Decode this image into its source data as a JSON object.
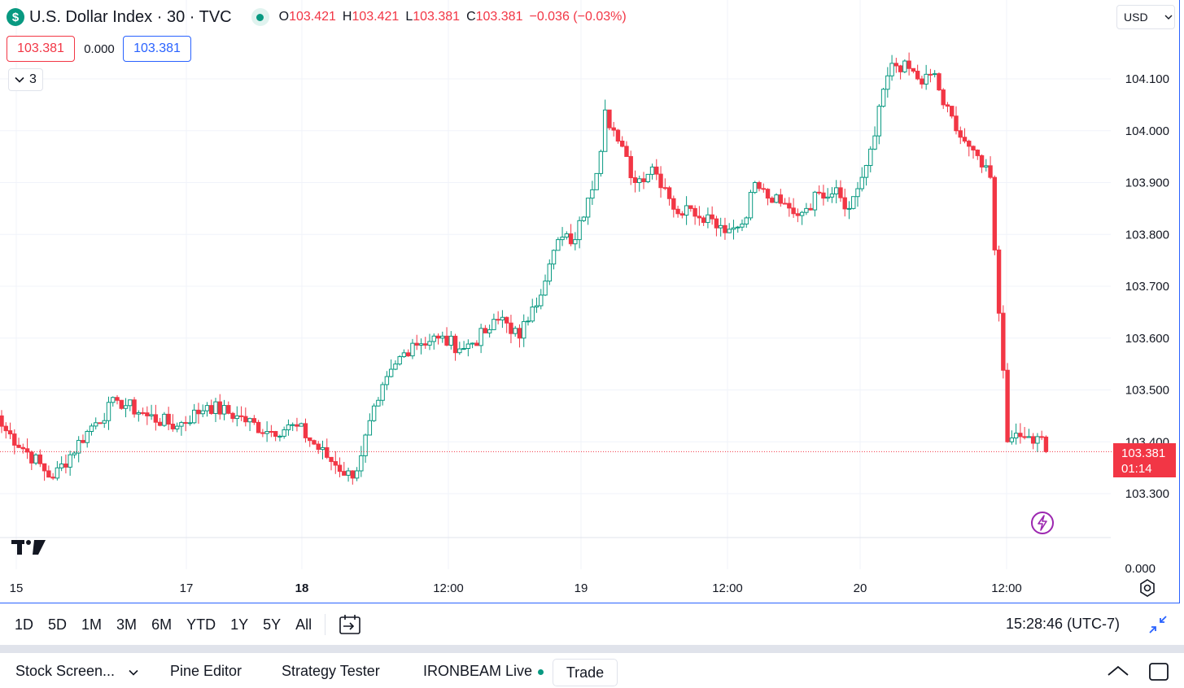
{
  "header": {
    "symbol_icon": "$",
    "title": "U.S. Dollar Index · 30 · TVC",
    "ohlc": {
      "o_label": "O",
      "o_value": "103.421",
      "h_label": "H",
      "h_value": "103.421",
      "l_label": "L",
      "l_value": "103.381",
      "c_label": "C",
      "c_value": "103.381",
      "change": "−0.036 (−0.03%)"
    }
  },
  "currency": {
    "label": "USD"
  },
  "quote": {
    "bid": "103.381",
    "spread": "0.000",
    "ask": "103.381"
  },
  "indicators": {
    "count": "3"
  },
  "last_price": {
    "price": "103.381",
    "countdown": "01:14"
  },
  "range_buttons": [
    "1D",
    "5D",
    "1M",
    "3M",
    "6M",
    "YTD",
    "1Y",
    "5Y",
    "All"
  ],
  "clock": "15:28:46 (UTC-7)",
  "bottom_tabs": {
    "screener": "Stock Screen...",
    "pine": "Pine Editor",
    "strategy": "Strategy Tester",
    "broker": "IRONBEAM Live",
    "trade": "Trade"
  },
  "colors": {
    "up": "#089981",
    "down": "#f23645",
    "accent": "#2962ff",
    "grid": "#f0f3fa"
  },
  "chart_data": {
    "type": "candlestick",
    "symbol": "U.S. Dollar Index",
    "interval": "30",
    "y_ticks": [
      "104.100",
      "104.000",
      "103.900",
      "103.800",
      "103.700",
      "103.600",
      "103.500",
      "103.400",
      "103.300"
    ],
    "y_zero_label": "0.000",
    "ylim": [
      103.22,
      104.17
    ],
    "x_ticks": [
      "15",
      "17",
      "18",
      "12:00",
      "19",
      "12:00",
      "20",
      "12:00"
    ],
    "x_ticks_bold": [
      "18"
    ],
    "last_value": 103.381,
    "anchors": [
      [
        0,
        103.43
      ],
      [
        12,
        103.33
      ],
      [
        20,
        103.42
      ],
      [
        27,
        103.48
      ],
      [
        34,
        103.45
      ],
      [
        41,
        103.43
      ],
      [
        48,
        103.47
      ],
      [
        55,
        103.45
      ],
      [
        62,
        103.42
      ],
      [
        69,
        103.43
      ],
      [
        76,
        103.37
      ],
      [
        82,
        103.33
      ],
      [
        88,
        103.48
      ],
      [
        92,
        103.55
      ],
      [
        96,
        103.59
      ],
      [
        102,
        103.6
      ],
      [
        108,
        103.58
      ],
      [
        113,
        103.61
      ],
      [
        117,
        103.64
      ],
      [
        121,
        103.6
      ],
      [
        124,
        103.66
      ],
      [
        127,
        103.71
      ],
      [
        130,
        103.79
      ],
      [
        134,
        103.79
      ],
      [
        137,
        103.87
      ],
      [
        140,
        103.96
      ],
      [
        141,
        104.04
      ],
      [
        144,
        103.98
      ],
      [
        148,
        103.9
      ],
      [
        152,
        103.93
      ],
      [
        155,
        103.89
      ],
      [
        158,
        103.84
      ],
      [
        161,
        103.85
      ],
      [
        166,
        103.83
      ],
      [
        170,
        103.81
      ],
      [
        173,
        103.82
      ],
      [
        176,
        103.9
      ],
      [
        179,
        103.87
      ],
      [
        182,
        103.86
      ],
      [
        185,
        103.84
      ],
      [
        188,
        103.85
      ],
      [
        191,
        103.88
      ],
      [
        195,
        103.89
      ],
      [
        198,
        103.85
      ],
      [
        201,
        103.91
      ],
      [
        204,
        103.99
      ],
      [
        206,
        104.08
      ],
      [
        208,
        104.13
      ],
      [
        212,
        104.12
      ],
      [
        215,
        104.09
      ],
      [
        218,
        104.11
      ],
      [
        220,
        104.05
      ],
      [
        223,
        104.0
      ],
      [
        226,
        103.97
      ],
      [
        229,
        103.93
      ],
      [
        231,
        103.91
      ],
      [
        232,
        103.77
      ],
      [
        235,
        103.4
      ],
      [
        238,
        103.41
      ],
      [
        240,
        103.41
      ],
      [
        242,
        103.41
      ],
      [
        244,
        103.38
      ]
    ]
  }
}
